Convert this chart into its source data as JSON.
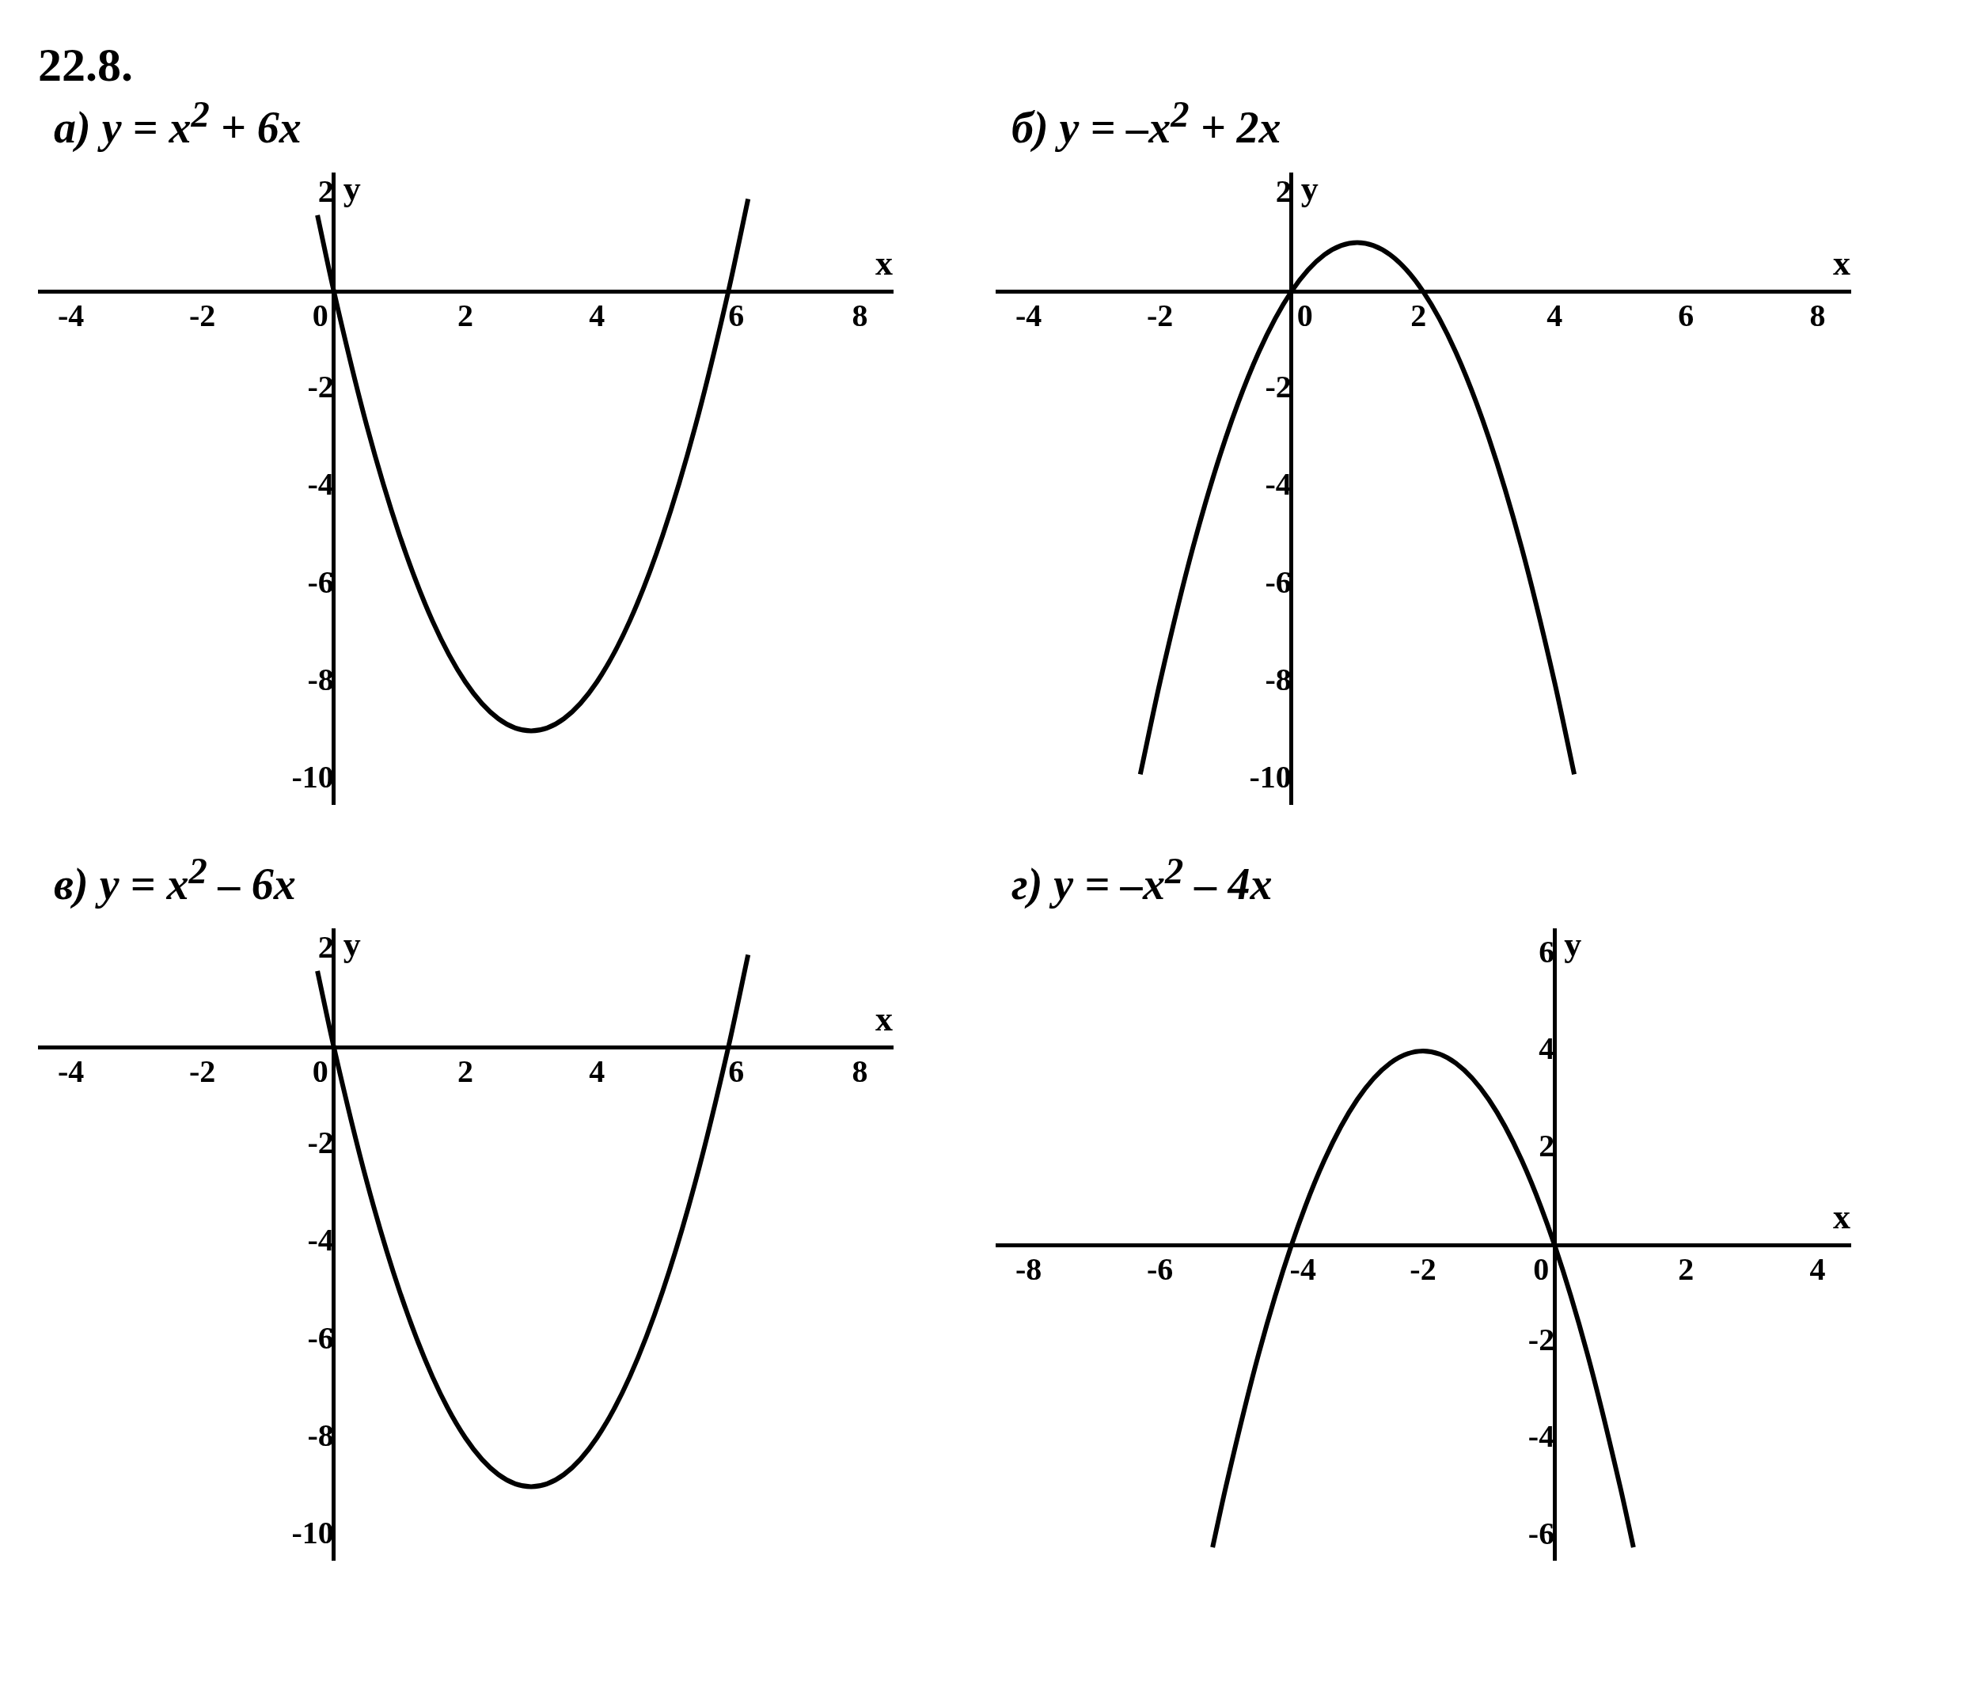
{
  "chart_data": [
    {
      "type": "line",
      "title": "а) y = x$^{2}$ + 6x",
      "annotations": [
        "22.8."
      ],
      "xlabel": "x",
      "ylabel": "y",
      "xlim": [
        -4.5,
        8.5
      ],
      "ylim": [
        -10.5,
        2.4
      ],
      "xticks": [
        -4,
        -2,
        0,
        2,
        4,
        6,
        8
      ],
      "yticks": [
        -10,
        -8,
        -6,
        -4,
        -2,
        2
      ],
      "grid": false,
      "legend": false,
      "marker": "none",
      "line_style": "solid",
      "series": [
        {
          "color": "#000000",
          "x": [
            -0.25,
            0,
            0.5,
            1,
            1.5,
            2,
            2.5,
            3,
            3.5,
            4,
            4.5,
            5,
            5.5,
            6,
            6.3
          ],
          "values": [
            1.56,
            0,
            -2.75,
            -5,
            -6.75,
            -8,
            -8.75,
            -9,
            -8.75,
            -8,
            -6.75,
            -5,
            -2.75,
            0,
            1.89
          ]
        }
      ]
    },
    {
      "type": "line",
      "title": "б) y = –x$^{2}$ + 2x",
      "xlabel": "x",
      "ylabel": "y",
      "xlim": [
        -4.5,
        8.5
      ],
      "ylim": [
        -10.5,
        2.4
      ],
      "xticks": [
        -4,
        -2,
        0,
        2,
        4,
        6,
        8
      ],
      "yticks": [
        -10,
        -8,
        -6,
        -4,
        -2,
        2
      ],
      "grid": false,
      "legend": false,
      "marker": "none",
      "line_style": "solid",
      "series": [
        {
          "color": "#000000",
          "x": [
            -2.3,
            -2,
            -1.5,
            -1,
            -0.5,
            0,
            0.5,
            1,
            1.5,
            2,
            2.5,
            3,
            3.5,
            4,
            4.3
          ],
          "values": [
            -9.89,
            -8,
            -5.25,
            -3,
            -1.25,
            0,
            0.75,
            1,
            0.75,
            0,
            -1.25,
            -3,
            -5.25,
            -8,
            -9.89
          ]
        }
      ]
    },
    {
      "type": "line",
      "title": "в) y = x$^{2}$ – 6x",
      "xlabel": "x",
      "ylabel": "y",
      "xlim": [
        -4.5,
        8.5
      ],
      "ylim": [
        -10.5,
        2.4
      ],
      "xticks": [
        -4,
        -2,
        0,
        2,
        4,
        6,
        8
      ],
      "yticks": [
        -10,
        -8,
        -6,
        -4,
        -2,
        2
      ],
      "grid": false,
      "legend": false,
      "marker": "none",
      "line_style": "solid",
      "series": [
        {
          "color": "#000000",
          "x": [
            -0.25,
            0,
            0.5,
            1,
            1.5,
            2,
            2.5,
            3,
            3.5,
            4,
            4.5,
            5,
            5.5,
            6,
            6.3
          ],
          "values": [
            1.56,
            0,
            -2.75,
            -5,
            -6.75,
            -8,
            -8.75,
            -9,
            -8.75,
            -8,
            -6.75,
            -5,
            -2.75,
            0,
            1.89
          ]
        }
      ]
    },
    {
      "type": "line",
      "title": "г) y = –x$^{2}$ – 4x",
      "xlabel": "x",
      "ylabel": "y",
      "xlim": [
        -8.5,
        4.5
      ],
      "ylim": [
        -6.5,
        6.5
      ],
      "xticks": [
        -8,
        -6,
        -4,
        -2,
        0,
        2,
        4
      ],
      "yticks": [
        -6,
        -4,
        -2,
        2,
        4,
        6
      ],
      "grid": false,
      "legend": false,
      "marker": "none",
      "line_style": "solid",
      "series": [
        {
          "color": "#000000",
          "x": [
            -5.2,
            -5,
            -4.5,
            -4,
            -3.5,
            -3,
            -2.5,
            -2,
            -1.5,
            -1,
            -0.5,
            0,
            0.5,
            1,
            1.2
          ],
          "values": [
            -6.24,
            -5,
            -2.25,
            0,
            1.75,
            3,
            3.75,
            4,
            3.75,
            3,
            1.75,
            0,
            -2.25,
            -5,
            -6.24
          ]
        }
      ]
    }
  ]
}
